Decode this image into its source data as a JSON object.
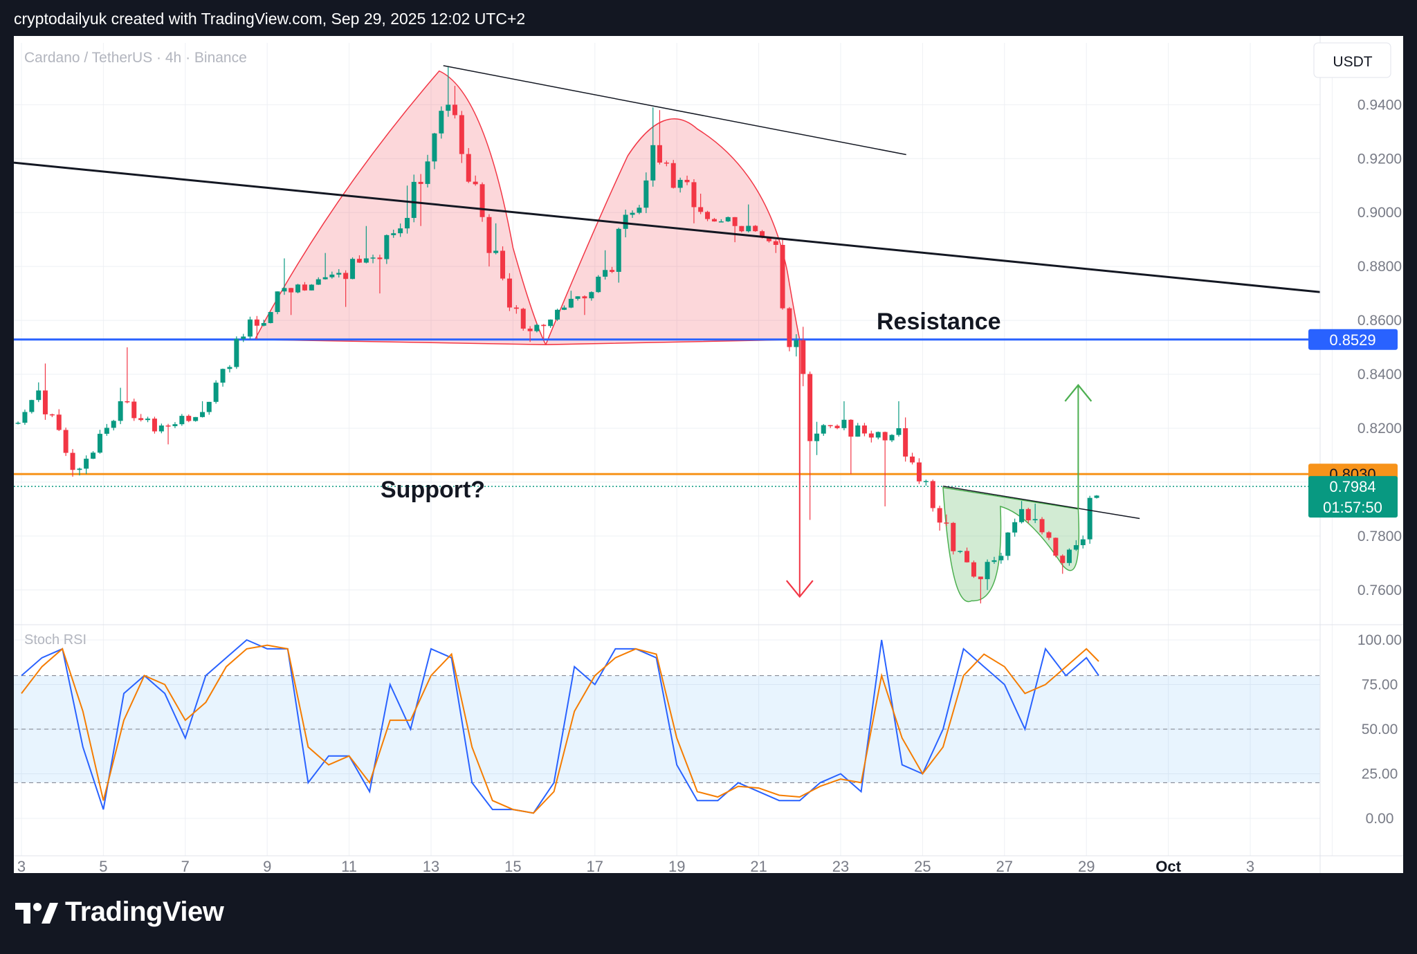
{
  "header": {
    "credit": "cryptodailyuk created with TradingView.com, Sep 29, 2025 12:02 UTC+2"
  },
  "brand": {
    "name": "TradingView",
    "logo_icon": "tradingview-logo-icon"
  },
  "chart_data": [
    {
      "type": "candlestick",
      "title": "Cardano / TetherUS · 4h · Binance",
      "currency": "USDT",
      "x_ticks": [
        "3",
        "5",
        "7",
        "9",
        "11",
        "13",
        "15",
        "17",
        "19",
        "21",
        "23",
        "25",
        "27",
        "29",
        "Oct",
        "3"
      ],
      "y_ticks": [
        "0.9400",
        "0.9200",
        "0.9000",
        "0.8800",
        "0.8600",
        "0.8400",
        "0.8200",
        "0.7800",
        "0.7600"
      ],
      "ylim": [
        0.7525,
        0.9655
      ],
      "price_labels": [
        {
          "value": 0.8529,
          "text": "0.8529",
          "color": "#2962ff",
          "line": "solid"
        },
        {
          "value": 0.803,
          "text": "0.8030",
          "color": "#f7931a",
          "line": "solid"
        },
        {
          "value": 0.7984,
          "text": "0.7984",
          "countdown": "01:57:50",
          "color": "#089981",
          "line": "dotted"
        }
      ],
      "annotations": {
        "resistance": "Resistance",
        "support": "Support?"
      },
      "daily_ohlc": [
        {
          "day": 3,
          "o": 0.815,
          "h": 0.837,
          "l": 0.814,
          "c": 0.834
        },
        {
          "day": 4,
          "o": 0.834,
          "h": 0.844,
          "l": 0.802,
          "c": 0.805
        },
        {
          "day": 5,
          "o": 0.805,
          "h": 0.835,
          "l": 0.803,
          "c": 0.83
        },
        {
          "day": 6,
          "o": 0.83,
          "h": 0.85,
          "l": 0.818,
          "c": 0.821
        },
        {
          "day": 7,
          "o": 0.821,
          "h": 0.83,
          "l": 0.814,
          "c": 0.826
        },
        {
          "day": 8,
          "o": 0.826,
          "h": 0.855,
          "l": 0.825,
          "c": 0.854
        },
        {
          "day": 9,
          "o": 0.854,
          "h": 0.883,
          "l": 0.853,
          "c": 0.872
        },
        {
          "day": 10,
          "o": 0.872,
          "h": 0.885,
          "l": 0.862,
          "c": 0.876
        },
        {
          "day": 11,
          "o": 0.876,
          "h": 0.895,
          "l": 0.865,
          "c": 0.883
        },
        {
          "day": 12,
          "o": 0.883,
          "h": 0.91,
          "l": 0.87,
          "c": 0.898
        },
        {
          "day": 13,
          "o": 0.898,
          "h": 0.954,
          "l": 0.895,
          "c": 0.94
        },
        {
          "day": 14,
          "o": 0.94,
          "h": 0.947,
          "l": 0.88,
          "c": 0.885
        },
        {
          "day": 15,
          "o": 0.885,
          "h": 0.896,
          "l": 0.852,
          "c": 0.856
        },
        {
          "day": 16,
          "o": 0.856,
          "h": 0.871,
          "l": 0.853,
          "c": 0.868
        },
        {
          "day": 17,
          "o": 0.868,
          "h": 0.886,
          "l": 0.862,
          "c": 0.878
        },
        {
          "day": 18,
          "o": 0.878,
          "h": 0.939,
          "l": 0.874,
          "c": 0.925
        },
        {
          "day": 19,
          "o": 0.925,
          "h": 0.938,
          "l": 0.896,
          "c": 0.902
        },
        {
          "day": 20,
          "o": 0.902,
          "h": 0.907,
          "l": 0.889,
          "c": 0.895
        },
        {
          "day": 21,
          "o": 0.895,
          "h": 0.903,
          "l": 0.885,
          "c": 0.888
        },
        {
          "day": 22,
          "o": 0.888,
          "h": 0.89,
          "l": 0.786,
          "c": 0.818
        },
        {
          "day": 23,
          "o": 0.818,
          "h": 0.83,
          "l": 0.803,
          "c": 0.821
        },
        {
          "day": 24,
          "o": 0.821,
          "h": 0.83,
          "l": 0.791,
          "c": 0.82
        },
        {
          "day": 25,
          "o": 0.82,
          "h": 0.824,
          "l": 0.782,
          "c": 0.785
        },
        {
          "day": 26,
          "o": 0.785,
          "h": 0.788,
          "l": 0.755,
          "c": 0.764
        },
        {
          "day": 27,
          "o": 0.764,
          "h": 0.793,
          "l": 0.76,
          "c": 0.79
        },
        {
          "day": 28,
          "o": 0.79,
          "h": 0.792,
          "l": 0.766,
          "c": 0.77
        },
        {
          "day": 29,
          "o": 0.77,
          "h": 0.808,
          "l": 0.769,
          "c": 0.7984
        }
      ]
    },
    {
      "type": "line",
      "title": "Stoch RSI",
      "y_ticks": [
        "100.00",
        "75.00",
        "50.00",
        "25.00",
        "0.00"
      ],
      "ylim": [
        0,
        100
      ],
      "bands": [
        20,
        50,
        80
      ],
      "x_days": [
        3.0,
        3.5,
        4.0,
        4.5,
        5.0,
        5.5,
        6.0,
        6.5,
        7.0,
        7.5,
        8.0,
        8.5,
        9.0,
        9.5,
        10.0,
        10.5,
        11.0,
        11.5,
        12.0,
        12.5,
        13.0,
        13.5,
        14.0,
        14.5,
        15.0,
        15.5,
        16.0,
        16.5,
        17.0,
        17.5,
        18.0,
        18.5,
        19.0,
        19.5,
        20.0,
        20.5,
        21.0,
        21.5,
        22.0,
        22.5,
        23.0,
        23.5,
        24.0,
        24.5,
        25.0,
        25.5,
        26.0,
        26.5,
        27.0,
        27.5,
        28.0,
        28.5,
        29.0,
        29.3
      ],
      "series": [
        {
          "name": "K",
          "color": "#2962ff",
          "values": [
            80,
            90,
            95,
            40,
            5,
            70,
            80,
            70,
            45,
            80,
            90,
            100,
            95,
            95,
            20,
            35,
            35,
            15,
            75,
            50,
            95,
            90,
            20,
            5,
            5,
            3,
            20,
            85,
            75,
            95,
            95,
            90,
            30,
            10,
            10,
            20,
            15,
            10,
            10,
            20,
            25,
            15,
            100,
            30,
            25,
            50,
            95,
            85,
            75,
            50,
            95,
            80,
            90,
            80
          ]
        },
        {
          "name": "D",
          "color": "#f57c00",
          "values": [
            70,
            85,
            95,
            60,
            10,
            55,
            80,
            75,
            55,
            65,
            85,
            95,
            97,
            95,
            40,
            30,
            35,
            20,
            55,
            55,
            80,
            92,
            40,
            10,
            5,
            3,
            15,
            60,
            80,
            90,
            95,
            92,
            45,
            15,
            12,
            18,
            17,
            13,
            12,
            18,
            22,
            20,
            80,
            45,
            25,
            40,
            80,
            92,
            85,
            70,
            75,
            85,
            95,
            88
          ]
        }
      ]
    }
  ]
}
